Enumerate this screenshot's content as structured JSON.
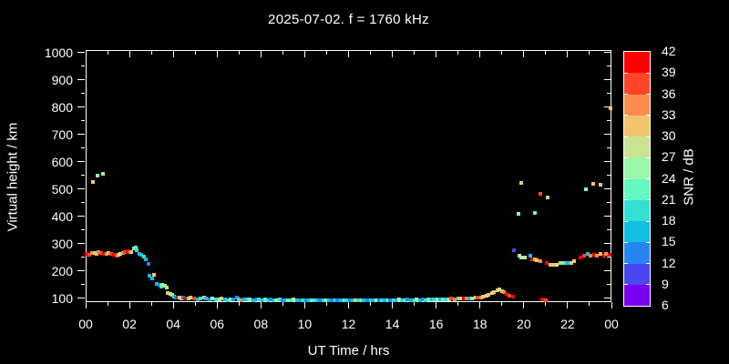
{
  "title": "2025-07-02. f = 1760 kHz",
  "axes": {
    "ylabel": "Virtual height / km",
    "xlabel": "UT Time / hrs",
    "y_ticks": [
      100,
      200,
      300,
      400,
      500,
      600,
      700,
      800,
      900,
      1000
    ],
    "x_ticks": [
      [
        0,
        "00"
      ],
      [
        2,
        "02"
      ],
      [
        4,
        "04"
      ],
      [
        6,
        "06"
      ],
      [
        8,
        "08"
      ],
      [
        10,
        "10"
      ],
      [
        12,
        "12"
      ],
      [
        14,
        "14"
      ],
      [
        16,
        "16"
      ],
      [
        18,
        "18"
      ],
      [
        20,
        "20"
      ],
      [
        22,
        "22"
      ],
      [
        24,
        "00"
      ]
    ]
  },
  "colorbar": {
    "label": "SNR / dB",
    "tick_labels": [
      42,
      39,
      36,
      33,
      30,
      27,
      24,
      21,
      18,
      15,
      12,
      9,
      6
    ],
    "colors_top_to_bottom": [
      "#ff0000",
      "#ff4526",
      "#fb8c4e",
      "#f2c46d",
      "#c8e492",
      "#98f7a8",
      "#66f7c3",
      "#33e0d1",
      "#12bfe1",
      "#2586f1",
      "#4a46f2",
      "#7a00f1"
    ]
  },
  "chart_data": {
    "type": "scatter",
    "title": "2025-07-02. f = 1760 kHz",
    "xlabel": "UT Time / hrs",
    "ylabel": "Virtual height / km",
    "xlim": [
      0,
      24
    ],
    "ylim": [
      100,
      1000
    ],
    "grid": false,
    "colorbar_label": "SNR / dB",
    "colorbar_range": [
      6,
      42
    ],
    "point_format": "[ut_hours, virtual_height_km, snr_db]",
    "points": [
      [
        0.05,
        263,
        41
      ],
      [
        0.15,
        258,
        38
      ],
      [
        0.3,
        265,
        35
      ],
      [
        0.4,
        267,
        32
      ],
      [
        0.5,
        264,
        32
      ],
      [
        0.6,
        268,
        35
      ],
      [
        0.7,
        266,
        38
      ],
      [
        0.85,
        264,
        41
      ],
      [
        0.95,
        262,
        35
      ],
      [
        1.05,
        266,
        32
      ],
      [
        1.15,
        262,
        38
      ],
      [
        1.3,
        258,
        41
      ],
      [
        1.4,
        256,
        38
      ],
      [
        1.5,
        259,
        32
      ],
      [
        1.6,
        263,
        29
      ],
      [
        1.7,
        266,
        35
      ],
      [
        1.8,
        269,
        38
      ],
      [
        1.9,
        272,
        41
      ],
      [
        2.0,
        270,
        38
      ],
      [
        2.1,
        268,
        32
      ],
      [
        2.2,
        284,
        26
      ],
      [
        2.3,
        286,
        23
      ],
      [
        2.35,
        276,
        20
      ],
      [
        2.45,
        263,
        17
      ],
      [
        2.55,
        258,
        17
      ],
      [
        2.65,
        252,
        20
      ],
      [
        2.75,
        243,
        17
      ],
      [
        2.85,
        226,
        14
      ],
      [
        0.35,
        525,
        32
      ],
      [
        0.55,
        548,
        26
      ],
      [
        0.8,
        556,
        26
      ],
      [
        2.9,
        182,
        17
      ],
      [
        3.05,
        172,
        17
      ],
      [
        3.1,
        186,
        32
      ],
      [
        3.25,
        153,
        17
      ],
      [
        3.35,
        148,
        14
      ],
      [
        3.45,
        143,
        20
      ],
      [
        3.5,
        150,
        26
      ],
      [
        3.6,
        147,
        29
      ],
      [
        3.7,
        138,
        26
      ],
      [
        3.75,
        118,
        32
      ],
      [
        3.85,
        116,
        29
      ],
      [
        3.95,
        112,
        26
      ],
      [
        4.05,
        107,
        20
      ],
      [
        4.1,
        104,
        14
      ],
      [
        4.2,
        103,
        41
      ],
      [
        4.3,
        101,
        23
      ],
      [
        4.35,
        99,
        32
      ],
      [
        4.45,
        103,
        14
      ],
      [
        4.55,
        100,
        41
      ],
      [
        4.7,
        98,
        23
      ],
      [
        4.8,
        102,
        32
      ],
      [
        4.95,
        100,
        38
      ],
      [
        5.1,
        97,
        17
      ],
      [
        5.25,
        99,
        20
      ],
      [
        5.4,
        101,
        32
      ],
      [
        5.5,
        98,
        17
      ],
      [
        5.65,
        96,
        14
      ],
      [
        5.8,
        99,
        26
      ],
      [
        5.95,
        97,
        20
      ],
      [
        6.1,
        95,
        26
      ],
      [
        6.2,
        98,
        32
      ],
      [
        6.35,
        96,
        17
      ],
      [
        6.5,
        94,
        20
      ],
      [
        6.6,
        97,
        23
      ],
      [
        6.75,
        95,
        14
      ],
      [
        6.9,
        104,
        14
      ],
      [
        7.0,
        96,
        20
      ],
      [
        7.1,
        94,
        35
      ],
      [
        7.25,
        96,
        17
      ],
      [
        7.4,
        95,
        20
      ],
      [
        7.5,
        97,
        23
      ],
      [
        7.65,
        94,
        17
      ],
      [
        7.8,
        96,
        14
      ],
      [
        7.9,
        95,
        20
      ],
      [
        8.05,
        93,
        17
      ],
      [
        8.2,
        95,
        23
      ],
      [
        8.3,
        94,
        20
      ],
      [
        8.45,
        96,
        14
      ],
      [
        8.6,
        94,
        17
      ],
      [
        8.7,
        93,
        26
      ],
      [
        8.85,
        95,
        20
      ],
      [
        9.0,
        94,
        14
      ],
      [
        9.1,
        92,
        17
      ],
      [
        9.25,
        94,
        23
      ],
      [
        9.4,
        93,
        20
      ],
      [
        9.5,
        95,
        29
      ],
      [
        9.65,
        93,
        17
      ],
      [
        9.8,
        92,
        14
      ],
      [
        9.9,
        94,
        20
      ],
      [
        10.05,
        93,
        14
      ],
      [
        10.2,
        92,
        17
      ],
      [
        10.3,
        94,
        23
      ],
      [
        10.45,
        93,
        20
      ],
      [
        10.6,
        92,
        17
      ],
      [
        10.7,
        94,
        14
      ],
      [
        10.85,
        93,
        20
      ],
      [
        11.0,
        92,
        26
      ],
      [
        11.1,
        94,
        17
      ],
      [
        11.25,
        93,
        14
      ],
      [
        11.4,
        92,
        20
      ],
      [
        11.5,
        94,
        14
      ],
      [
        11.65,
        93,
        17
      ],
      [
        11.8,
        92,
        23
      ],
      [
        11.9,
        93,
        20
      ],
      [
        12.05,
        92,
        14
      ],
      [
        12.2,
        94,
        17
      ],
      [
        12.3,
        93,
        32
      ],
      [
        12.45,
        92,
        20
      ],
      [
        12.6,
        93,
        23
      ],
      [
        12.7,
        92,
        17
      ],
      [
        12.85,
        94,
        14
      ],
      [
        13.0,
        93,
        20
      ],
      [
        13.1,
        92,
        17
      ],
      [
        13.25,
        94,
        26
      ],
      [
        13.4,
        93,
        14
      ],
      [
        13.5,
        92,
        20
      ],
      [
        13.65,
        94,
        17
      ],
      [
        13.8,
        93,
        23
      ],
      [
        13.9,
        92,
        14
      ],
      [
        14.05,
        94,
        20
      ],
      [
        14.2,
        93,
        17
      ],
      [
        14.3,
        95,
        29
      ],
      [
        14.45,
        94,
        20
      ],
      [
        14.6,
        93,
        23
      ],
      [
        14.7,
        95,
        14
      ],
      [
        14.85,
        94,
        17
      ],
      [
        15.0,
        93,
        20
      ],
      [
        15.1,
        95,
        26
      ],
      [
        15.25,
        94,
        17
      ],
      [
        15.4,
        95,
        14
      ],
      [
        15.5,
        94,
        20
      ],
      [
        15.65,
        96,
        23
      ],
      [
        15.8,
        95,
        17
      ],
      [
        15.9,
        96,
        20
      ],
      [
        16.05,
        95,
        26
      ],
      [
        16.2,
        96,
        17
      ],
      [
        16.3,
        97,
        23
      ],
      [
        16.45,
        96,
        20
      ],
      [
        16.6,
        97,
        29
      ],
      [
        16.7,
        98,
        38
      ],
      [
        16.85,
        97,
        35
      ],
      [
        17.0,
        98,
        20
      ],
      [
        17.1,
        99,
        32
      ],
      [
        17.25,
        98,
        41
      ],
      [
        17.4,
        100,
        35
      ],
      [
        17.5,
        99,
        17
      ],
      [
        17.65,
        100,
        26
      ],
      [
        17.8,
        101,
        32
      ],
      [
        17.9,
        102,
        38
      ],
      [
        18.05,
        104,
        35
      ],
      [
        18.15,
        106,
        32
      ],
      [
        18.3,
        109,
        29
      ],
      [
        18.4,
        113,
        32
      ],
      [
        18.55,
        118,
        29
      ],
      [
        18.65,
        124,
        32
      ],
      [
        18.8,
        129,
        32
      ],
      [
        18.9,
        131,
        29
      ],
      [
        19.0,
        127,
        32
      ],
      [
        19.1,
        121,
        35
      ],
      [
        19.2,
        115,
        41
      ],
      [
        19.35,
        110,
        38
      ],
      [
        19.5,
        106,
        41
      ],
      [
        19.55,
        276,
        11
      ],
      [
        19.8,
        256,
        29
      ],
      [
        19.9,
        249,
        26
      ],
      [
        20.05,
        249,
        29
      ],
      [
        20.3,
        256,
        17
      ],
      [
        20.4,
        242,
        41
      ],
      [
        20.5,
        242,
        32
      ],
      [
        20.6,
        239,
        32
      ],
      [
        20.75,
        235,
        35
      ],
      [
        21.05,
        229,
        41
      ],
      [
        21.2,
        222,
        32
      ],
      [
        21.35,
        222,
        32
      ],
      [
        21.5,
        222,
        29
      ],
      [
        21.65,
        229,
        32
      ],
      [
        21.8,
        229,
        23
      ],
      [
        21.9,
        229,
        20
      ],
      [
        22.0,
        229,
        17
      ],
      [
        22.15,
        229,
        32
      ],
      [
        22.3,
        235,
        32
      ],
      [
        22.6,
        249,
        41
      ],
      [
        22.75,
        256,
        38
      ],
      [
        22.9,
        262,
        17
      ],
      [
        23.05,
        256,
        35
      ],
      [
        23.2,
        259,
        41
      ],
      [
        23.35,
        256,
        35
      ],
      [
        23.5,
        262,
        32
      ],
      [
        23.65,
        256,
        41
      ],
      [
        23.75,
        262,
        35
      ],
      [
        23.9,
        259,
        41
      ],
      [
        19.75,
        410,
        26
      ],
      [
        19.9,
        522,
        32
      ],
      [
        20.5,
        412,
        23
      ],
      [
        20.75,
        483,
        38
      ],
      [
        21.1,
        468,
        32
      ],
      [
        22.85,
        500,
        26
      ],
      [
        23.15,
        520,
        32
      ],
      [
        23.5,
        516,
        32
      ],
      [
        23.95,
        795,
        32
      ],
      [
        20.85,
        95,
        41
      ],
      [
        21.0,
        93,
        38
      ]
    ]
  }
}
